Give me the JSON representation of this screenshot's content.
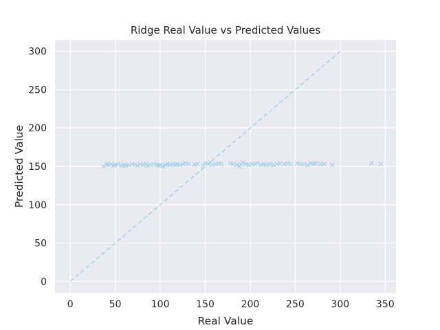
{
  "chart_data": {
    "type": "scatter",
    "title": "Ridge Real Value vs Predicted Values",
    "xlabel": "Real Value",
    "ylabel": "Predicted Value",
    "xlim": [
      -17,
      362
    ],
    "ylim": [
      -15,
      315
    ],
    "xticks": [
      0,
      50,
      100,
      150,
      200,
      250,
      300,
      350
    ],
    "yticks": [
      0,
      50,
      100,
      150,
      200,
      250,
      300
    ],
    "grid": true,
    "background": "#eaeaf2",
    "marker": "x",
    "marker_color": "#a6d3e8",
    "reference_line": {
      "style": "dashed",
      "color": "#a6d3e8",
      "x": [
        0,
        300
      ],
      "y": [
        0,
        300
      ]
    },
    "points": [
      [
        37,
        150
      ],
      [
        40,
        153
      ],
      [
        42,
        152
      ],
      [
        45,
        153
      ],
      [
        48,
        151
      ],
      [
        50,
        152
      ],
      [
        53,
        153
      ],
      [
        57,
        151
      ],
      [
        60,
        152
      ],
      [
        62,
        151
      ],
      [
        65,
        152
      ],
      [
        69,
        153
      ],
      [
        72,
        152
      ],
      [
        75,
        151
      ],
      [
        78,
        153
      ],
      [
        81,
        152
      ],
      [
        84,
        153
      ],
      [
        86,
        151
      ],
      [
        89,
        152
      ],
      [
        93,
        153
      ],
      [
        96,
        152
      ],
      [
        98,
        151
      ],
      [
        100,
        152
      ],
      [
        103,
        150
      ],
      [
        106,
        152
      ],
      [
        108,
        153
      ],
      [
        111,
        152
      ],
      [
        114,
        153
      ],
      [
        117,
        152
      ],
      [
        119,
        153
      ],
      [
        122,
        152
      ],
      [
        125,
        153
      ],
      [
        128,
        154
      ],
      [
        131,
        153
      ],
      [
        138,
        152
      ],
      [
        141,
        153
      ],
      [
        148,
        151
      ],
      [
        150,
        154
      ],
      [
        153,
        153
      ],
      [
        156,
        155
      ],
      [
        158,
        152
      ],
      [
        162,
        153
      ],
      [
        165,
        154
      ],
      [
        168,
        153
      ],
      [
        178,
        154
      ],
      [
        181,
        153
      ],
      [
        185,
        152
      ],
      [
        188,
        150
      ],
      [
        190,
        153
      ],
      [
        192,
        155
      ],
      [
        195,
        153
      ],
      [
        198,
        152
      ],
      [
        202,
        153
      ],
      [
        205,
        153
      ],
      [
        208,
        154
      ],
      [
        212,
        152
      ],
      [
        215,
        153
      ],
      [
        218,
        152
      ],
      [
        222,
        153
      ],
      [
        226,
        152
      ],
      [
        230,
        153
      ],
      [
        233,
        154
      ],
      [
        238,
        153
      ],
      [
        242,
        154
      ],
      [
        245,
        153
      ],
      [
        252,
        154
      ],
      [
        256,
        153
      ],
      [
        260,
        153
      ],
      [
        264,
        152
      ],
      [
        267,
        154
      ],
      [
        270,
        153
      ],
      [
        273,
        154
      ],
      [
        278,
        153
      ],
      [
        282,
        153
      ],
      [
        291,
        152
      ],
      [
        335,
        154
      ],
      [
        345,
        153
      ]
    ]
  }
}
